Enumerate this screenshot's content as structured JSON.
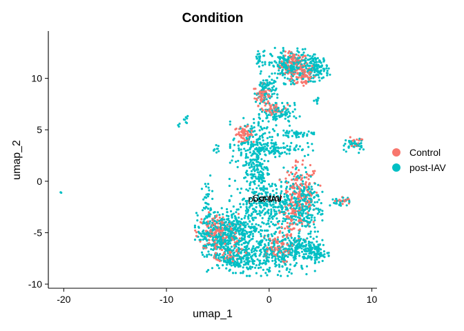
{
  "chart_data": {
    "type": "scatter",
    "title": "Condition",
    "xlabel": "umap_1",
    "ylabel": "umap_2",
    "xlim": [
      -21.5,
      10.5
    ],
    "ylim": [
      -10.4,
      14.6
    ],
    "xticks": [
      -20,
      -10,
      0,
      10
    ],
    "yticks": [
      -10,
      -5,
      0,
      5,
      10
    ],
    "grid": false,
    "legend_position": "right",
    "series": [
      {
        "name": "Control",
        "color": "#F8766D",
        "clusters": [
          {
            "x": 2.4,
            "y": 11.3,
            "sx": 0.7,
            "sy": 0.6,
            "n": 110
          },
          {
            "x": 3.3,
            "y": 10.3,
            "sx": 0.6,
            "sy": 0.6,
            "n": 60
          },
          {
            "x": -0.7,
            "y": 8.4,
            "sx": 0.35,
            "sy": 0.5,
            "n": 55
          },
          {
            "x": 0.6,
            "y": 7.0,
            "sx": 0.6,
            "sy": 0.25,
            "n": 35
          },
          {
            "x": -2.5,
            "y": 4.6,
            "sx": 0.45,
            "sy": 0.35,
            "n": 55
          },
          {
            "x": 3.0,
            "y": -1.5,
            "sx": 0.9,
            "sy": 1.6,
            "n": 170
          },
          {
            "x": 2.2,
            "y": -4.2,
            "sx": 0.6,
            "sy": 0.9,
            "n": 50
          },
          {
            "x": -5.0,
            "y": -5.0,
            "sx": 1.0,
            "sy": 0.9,
            "n": 150
          },
          {
            "x": -3.8,
            "y": -7.0,
            "sx": 0.7,
            "sy": 0.4,
            "n": 40
          },
          {
            "x": 0.5,
            "y": -6.5,
            "sx": 0.8,
            "sy": 0.7,
            "n": 60
          },
          {
            "x": 8.4,
            "y": 3.8,
            "sx": 0.3,
            "sy": 0.25,
            "n": 15
          },
          {
            "x": 7.2,
            "y": -1.9,
            "sx": 0.4,
            "sy": 0.2,
            "n": 12
          }
        ]
      },
      {
        "name": "post-IAV",
        "color": "#00BFC4",
        "clusters": [
          {
            "x": 2.0,
            "y": 11.2,
            "sx": 0.9,
            "sy": 0.8,
            "n": 200
          },
          {
            "x": 4.6,
            "y": 11.0,
            "sx": 0.6,
            "sy": 0.6,
            "n": 130
          },
          {
            "x": -0.3,
            "y": 8.7,
            "sx": 0.5,
            "sy": 0.8,
            "n": 90
          },
          {
            "x": -0.9,
            "y": 12.0,
            "sx": 0.3,
            "sy": 0.6,
            "n": 25
          },
          {
            "x": 1.0,
            "y": 6.5,
            "sx": 0.9,
            "sy": 0.5,
            "n": 90
          },
          {
            "x": 2.6,
            "y": 4.6,
            "sx": 0.8,
            "sy": 0.15,
            "n": 45
          },
          {
            "x": 0.8,
            "y": 3.2,
            "sx": 1.6,
            "sy": 0.35,
            "n": 90
          },
          {
            "x": -1.6,
            "y": 3.6,
            "sx": 1.0,
            "sy": 1.2,
            "n": 160
          },
          {
            "x": -1.2,
            "y": 1.0,
            "sx": 0.6,
            "sy": 1.0,
            "n": 110
          },
          {
            "x": 0.1,
            "y": -2.3,
            "sx": 1.8,
            "sy": 1.2,
            "n": 320
          },
          {
            "x": 3.2,
            "y": -2.2,
            "sx": 0.9,
            "sy": 1.6,
            "n": 220
          },
          {
            "x": -4.8,
            "y": -5.2,
            "sx": 1.1,
            "sy": 1.0,
            "n": 320
          },
          {
            "x": -2.8,
            "y": -4.6,
            "sx": 0.9,
            "sy": 0.9,
            "n": 150
          },
          {
            "x": 0.5,
            "y": -7.0,
            "sx": 1.8,
            "sy": 1.0,
            "n": 320
          },
          {
            "x": -3.2,
            "y": -7.6,
            "sx": 1.3,
            "sy": 0.6,
            "n": 160
          },
          {
            "x": 3.6,
            "y": -6.5,
            "sx": 1.0,
            "sy": 0.5,
            "n": 130
          },
          {
            "x": 4.7,
            "y": -7.2,
            "sx": 0.5,
            "sy": 0.3,
            "n": 45
          },
          {
            "x": -6.0,
            "y": -2.3,
            "sx": 0.25,
            "sy": 1.3,
            "n": 40
          },
          {
            "x": 8.3,
            "y": 3.5,
            "sx": 0.4,
            "sy": 0.35,
            "n": 35
          },
          {
            "x": 6.9,
            "y": -2.0,
            "sx": 0.5,
            "sy": 0.2,
            "n": 25
          },
          {
            "x": -8.1,
            "y": 6.1,
            "sx": 0.15,
            "sy": 0.2,
            "n": 7
          },
          {
            "x": -8.7,
            "y": 5.5,
            "sx": 0.1,
            "sy": 0.1,
            "n": 3
          },
          {
            "x": -5.2,
            "y": 3.1,
            "sx": 0.15,
            "sy": 0.25,
            "n": 9
          },
          {
            "x": 4.7,
            "y": 7.8,
            "sx": 0.15,
            "sy": 0.2,
            "n": 8
          },
          {
            "x": 7.5,
            "y": 3.2,
            "sx": 0.2,
            "sy": 0.2,
            "n": 6
          },
          {
            "x": -20.2,
            "y": -1.1,
            "sx": 0.05,
            "sy": 0.05,
            "n": 2
          }
        ]
      }
    ],
    "annotations": [
      {
        "text": "Control",
        "x": -0.2,
        "y": -1.6
      },
      {
        "text": "post-IAV",
        "x": -0.4,
        "y": -1.7
      }
    ]
  }
}
